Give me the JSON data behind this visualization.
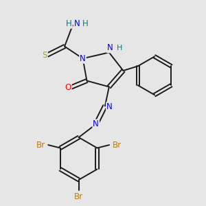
{
  "bg_color": "#e6e6e6",
  "bond_color": "#1a1a1a",
  "atom_colors": {
    "N": "#0000ff",
    "H": "#008080",
    "O": "#ff0000",
    "S": "#aaaa00",
    "Br": "#cc7700",
    "C": "#1a1a1a"
  },
  "bond_lw": 1.4,
  "font_size": 8.5
}
